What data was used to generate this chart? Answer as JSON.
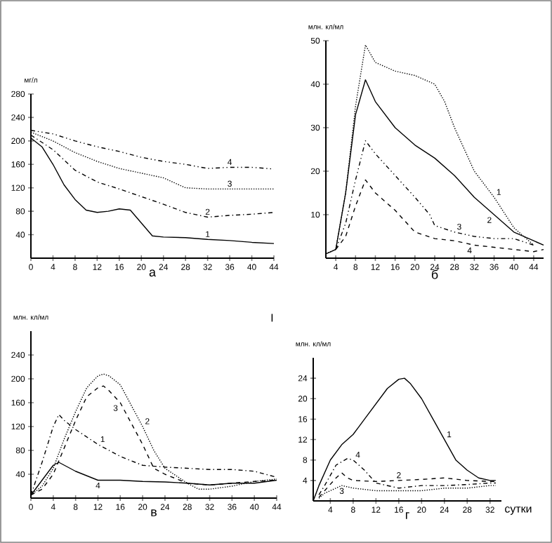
{
  "chart_data": [
    {
      "type": "line",
      "title": "а",
      "ylabel": "мг/л",
      "xlim": [
        0,
        44
      ],
      "ylim": [
        0,
        280
      ],
      "xticks": [
        0,
        4,
        8,
        12,
        16,
        20,
        24,
        28,
        32,
        36,
        40,
        44
      ],
      "yticks": [
        40,
        80,
        120,
        160,
        200,
        240,
        280
      ],
      "series": [
        {
          "name": "1",
          "color": "#000000",
          "line_style": "solid",
          "x": [
            0,
            2,
            4,
            6,
            8,
            10,
            12,
            14,
            16,
            18,
            20,
            22,
            24,
            28,
            32,
            36,
            40,
            44
          ],
          "values": [
            205,
            190,
            160,
            125,
            100,
            82,
            78,
            80,
            84,
            82,
            60,
            38,
            36,
            35,
            32,
            30,
            27,
            25
          ]
        },
        {
          "name": "2",
          "color": "#000000",
          "line_style": "dashdot",
          "x": [
            0,
            4,
            8,
            12,
            16,
            20,
            24,
            28,
            32,
            36,
            40,
            44
          ],
          "values": [
            210,
            185,
            150,
            130,
            118,
            105,
            92,
            78,
            70,
            73,
            75,
            78
          ]
        },
        {
          "name": "3",
          "color": "#000000",
          "line_style": "dotted",
          "x": [
            0,
            4,
            8,
            12,
            16,
            20,
            24,
            28,
            32,
            36,
            40,
            44
          ],
          "values": [
            215,
            200,
            180,
            165,
            153,
            145,
            137,
            120,
            118,
            118,
            118,
            118
          ]
        },
        {
          "name": "4",
          "color": "#000000",
          "line_style": "dashdotdot",
          "x": [
            0,
            4,
            8,
            12,
            16,
            20,
            24,
            28,
            32,
            36,
            40,
            44
          ],
          "values": [
            218,
            212,
            200,
            190,
            182,
            172,
            165,
            160,
            153,
            155,
            155,
            152
          ]
        }
      ]
    },
    {
      "type": "line",
      "title": "б",
      "ylabel": "млн. кл/мл",
      "xlim": [
        2,
        46
      ],
      "ylim": [
        0,
        50
      ],
      "xticks": [
        4,
        8,
        12,
        16,
        20,
        24,
        28,
        32,
        36,
        40,
        44
      ],
      "yticks": [
        10,
        20,
        30,
        40,
        50
      ],
      "series": [
        {
          "name": "1",
          "color": "#000000",
          "line_style": "dotted",
          "x": [
            2,
            4,
            6,
            8,
            10,
            12,
            16,
            20,
            24,
            26,
            28,
            32,
            36,
            40,
            44
          ],
          "values": [
            1,
            2,
            15,
            35,
            49,
            45,
            43,
            42,
            40,
            36,
            30,
            20,
            14,
            7,
            3
          ]
        },
        {
          "name": "2",
          "color": "#000000",
          "line_style": "solid",
          "x": [
            2,
            4,
            6,
            8,
            10,
            12,
            16,
            20,
            24,
            28,
            32,
            36,
            40,
            44,
            46
          ],
          "values": [
            1,
            2,
            15,
            33,
            41,
            36,
            30,
            26,
            23,
            19,
            14,
            10,
            6,
            4,
            3
          ]
        },
        {
          "name": "3",
          "color": "#000000",
          "line_style": "dashdotdot",
          "x": [
            4,
            6,
            8,
            10,
            12,
            16,
            20,
            23,
            24,
            28,
            32,
            36,
            40,
            44
          ],
          "values": [
            2,
            8,
            18,
            27,
            24,
            19,
            14,
            10,
            7.5,
            6,
            5,
            4.5,
            4.5,
            3
          ]
        },
        {
          "name": "4",
          "color": "#000000",
          "line_style": "dashed",
          "x": [
            4,
            6,
            8,
            10,
            12,
            16,
            20,
            24,
            28,
            32,
            36,
            40,
            44,
            46
          ],
          "values": [
            2,
            5,
            12,
            18,
            15,
            11,
            6,
            4.5,
            4,
            3,
            2.5,
            2,
            1.5,
            2
          ]
        }
      ]
    },
    {
      "type": "line",
      "title": "в",
      "ylabel": "млн. кл/мл",
      "xlim": [
        0,
        44
      ],
      "ylim": [
        0,
        280
      ],
      "xticks": [
        0,
        4,
        8,
        12,
        16,
        20,
        24,
        28,
        32,
        36,
        40,
        44
      ],
      "yticks": [
        40,
        80,
        120,
        160,
        200,
        240
      ],
      "annotations": [
        "I"
      ],
      "series": [
        {
          "name": "1",
          "color": "#000000",
          "line_style": "dashdot",
          "x": [
            0,
            2,
            4,
            5,
            6,
            8,
            12,
            16,
            20,
            24,
            28,
            32,
            36,
            40,
            44
          ],
          "values": [
            5,
            60,
            120,
            140,
            130,
            115,
            90,
            70,
            55,
            52,
            50,
            48,
            48,
            45,
            35
          ]
        },
        {
          "name": "2",
          "color": "#000000",
          "line_style": "dotted",
          "x": [
            0,
            2,
            4,
            6,
            8,
            10,
            12,
            13,
            14,
            16,
            20,
            22,
            24,
            28,
            30,
            32,
            36,
            40,
            44
          ],
          "values": [
            5,
            20,
            50,
            100,
            145,
            185,
            205,
            208,
            205,
            190,
            120,
            80,
            50,
            25,
            15,
            15,
            20,
            28,
            32
          ]
        },
        {
          "name": "3",
          "color": "#000000",
          "line_style": "dashed",
          "x": [
            0,
            2,
            4,
            6,
            8,
            10,
            12,
            13,
            14,
            16,
            20,
            22,
            24,
            28,
            32,
            36,
            40,
            44
          ],
          "values": [
            5,
            15,
            40,
            85,
            130,
            170,
            185,
            188,
            180,
            160,
            90,
            50,
            40,
            25,
            22,
            25,
            28,
            30
          ]
        },
        {
          "name": "4",
          "color": "#000000",
          "line_style": "solid",
          "x": [
            0,
            2,
            4,
            5,
            8,
            12,
            16,
            20,
            24,
            28,
            32,
            36,
            40,
            44
          ],
          "values": [
            5,
            30,
            55,
            60,
            45,
            30,
            30,
            28,
            27,
            25,
            22,
            25,
            25,
            30
          ]
        }
      ]
    },
    {
      "type": "line",
      "title": "г",
      "xlabel": "сутки",
      "ylabel": "млн. кл/мл",
      "xlim": [
        1,
        34
      ],
      "ylim": [
        0,
        28
      ],
      "xticks": [
        4,
        8,
        12,
        16,
        20,
        24,
        28,
        32
      ],
      "yticks": [
        4,
        8,
        12,
        16,
        20,
        24
      ],
      "series": [
        {
          "name": "1",
          "color": "#000000",
          "line_style": "solid",
          "x": [
            1,
            2,
            4,
            6,
            8,
            10,
            12,
            14,
            16,
            17,
            18,
            20,
            22,
            24,
            26,
            28,
            30,
            32,
            33
          ],
          "values": [
            0,
            3,
            8,
            11,
            13,
            16,
            19,
            22,
            23.8,
            24,
            23,
            20,
            16,
            12,
            8,
            6,
            4.5,
            4,
            4
          ]
        },
        {
          "name": "2",
          "color": "#000000",
          "line_style": "dashed",
          "x": [
            2,
            3,
            5,
            6,
            7,
            8,
            12,
            16,
            20,
            24,
            28,
            32,
            33
          ],
          "values": [
            0.7,
            2,
            4.5,
            5.5,
            4.5,
            4,
            3.8,
            4,
            4.2,
            4.5,
            4,
            3.8,
            3.8
          ]
        },
        {
          "name": "3",
          "color": "#000000",
          "line_style": "dotted",
          "x": [
            2,
            3,
            5,
            6,
            8,
            12,
            16,
            20,
            24,
            28,
            32,
            33
          ],
          "values": [
            0.5,
            1.5,
            2.5,
            3,
            2.5,
            2,
            2,
            2,
            2.5,
            2.5,
            3,
            3
          ]
        },
        {
          "name": "4",
          "color": "#000000",
          "line_style": "dashdot",
          "x": [
            2,
            3,
            5,
            7,
            8,
            10,
            12,
            16,
            20,
            24,
            28,
            32,
            33
          ],
          "values": [
            1.2,
            3,
            7,
            8.3,
            8,
            6,
            3.5,
            2.5,
            3,
            3,
            3.2,
            3.5,
            3.5
          ]
        }
      ]
    }
  ]
}
